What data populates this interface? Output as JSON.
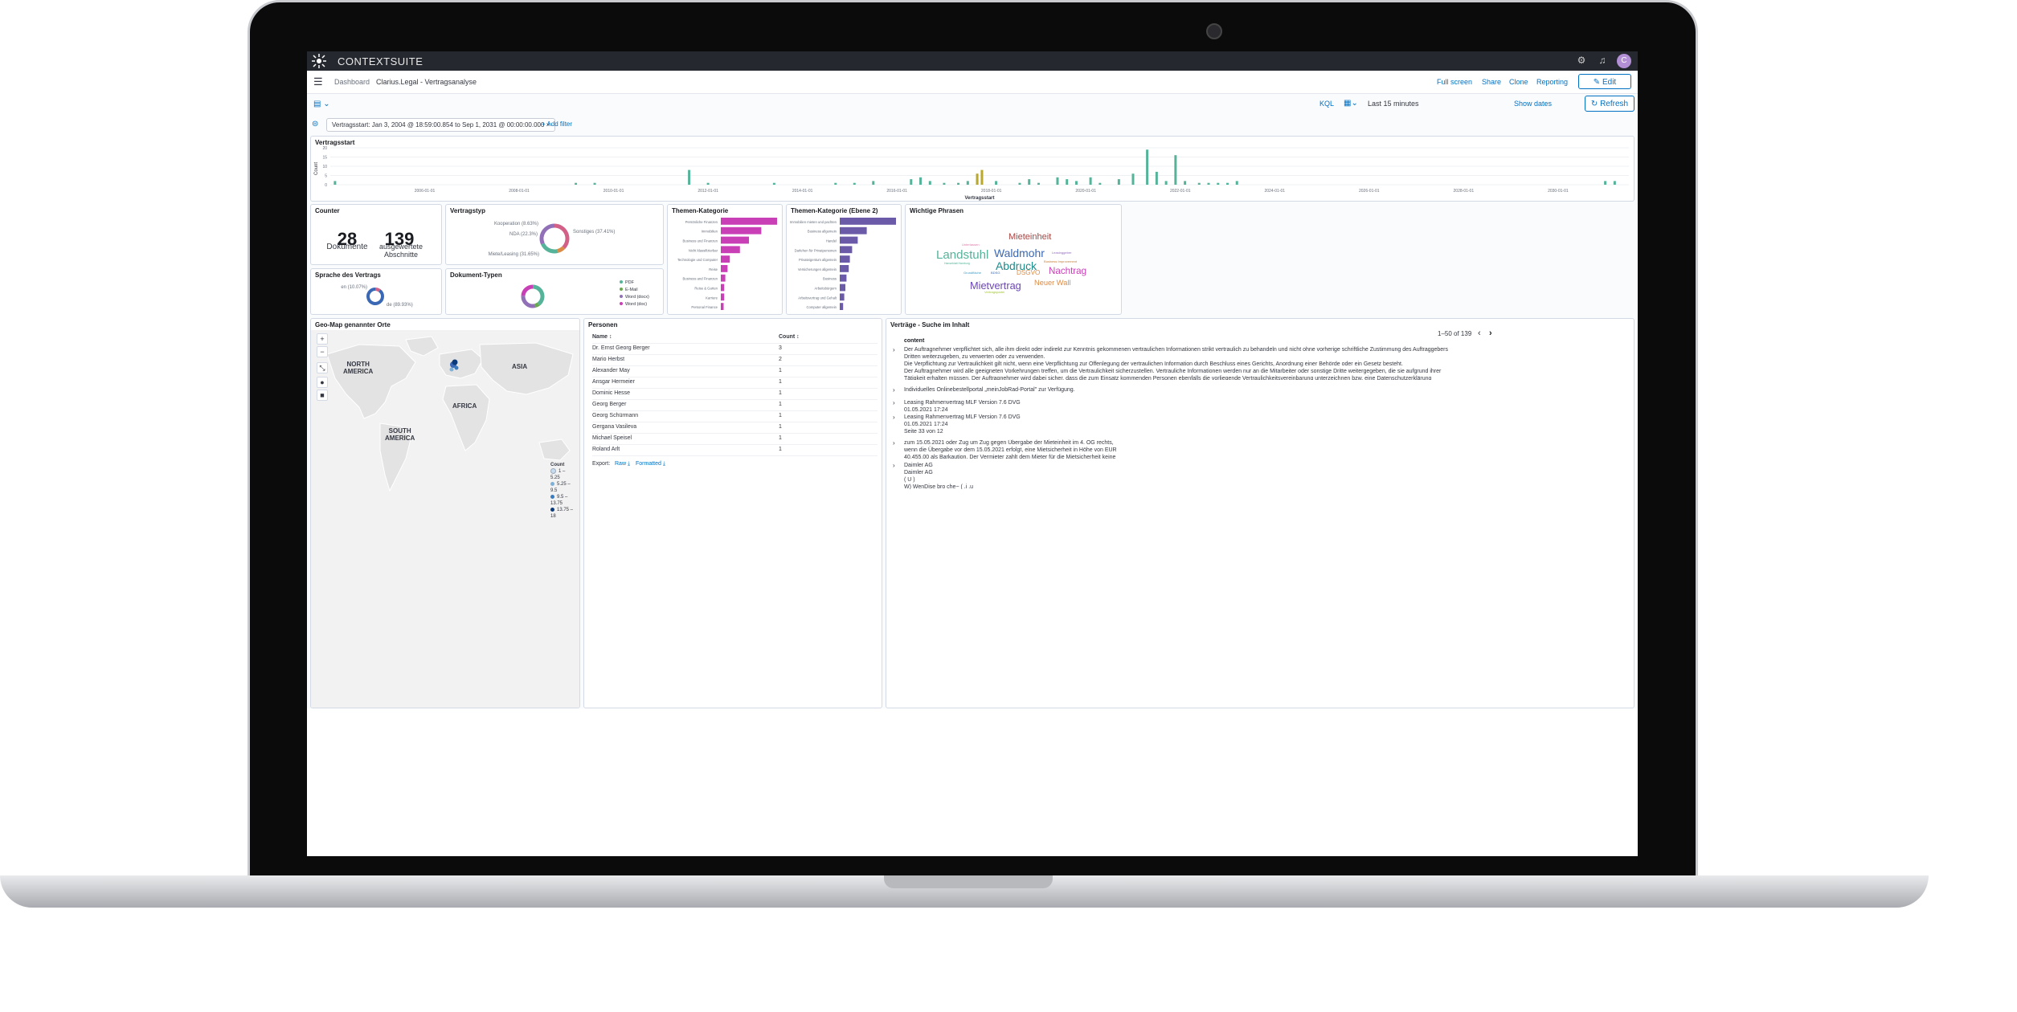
{
  "app": {
    "brand": "CONTEXTSUITE",
    "avatar_letter": "C"
  },
  "nav": {
    "breadcrumb_root": "Dashboard",
    "breadcrumb_current": "Clarius.Legal - Vertragsanalyse",
    "links": [
      "Full screen",
      "Share",
      "Clone",
      "Reporting"
    ],
    "edit_label": "Edit"
  },
  "query": {
    "kql": "KQL",
    "time_range": "Last 15 minutes",
    "show_dates": "Show dates",
    "refresh_label": "Refresh"
  },
  "filters": {
    "pill": "Vertragsstart: Jan 3, 2004 @ 18:59:00.854 to Sep 1, 2031 @ 00:00:00.000",
    "add_filter": "+ Add filter"
  },
  "panels": {
    "vertragsstart": "Vertragsstart",
    "counter": "Counter",
    "vertragstyp": "Vertragstyp",
    "themen": "Themen-Kategorie",
    "themen2": "Themen-Kategorie (Ebene 2)",
    "phrasen": "Wichtige Phrasen",
    "sprache": "Sprache des Vertrags",
    "dokumente": "Dokument-Typen",
    "geomap": "Geo-Map genannter Orte",
    "personen": "Personen",
    "vertraege": "Verträge - Suche im Inhalt"
  },
  "counter": {
    "docs_value": "28",
    "docs_label": "Dokumente",
    "sections_value": "139",
    "sections_label": "ausgewertete Abschnitte"
  },
  "chart_data": [
    {
      "type": "bar",
      "title": "Vertragsstart",
      "xlabel": "Vertragsstart",
      "ylabel": "Count",
      "ylim": [
        0,
        20
      ],
      "yticks": [
        "0",
        "5",
        "10",
        "15",
        "20"
      ],
      "xticks": [
        "2006-01-01",
        "2008-01-01",
        "2010-01-01",
        "2012-01-01",
        "2014-01-01",
        "2016-01-01",
        "2018-01-01",
        "2020-01-01",
        "2022-01-01",
        "2024-01-01",
        "2026-01-01",
        "2028-01-01",
        "2030-01-01"
      ],
      "series": [
        {
          "color": "#54b399",
          "points": [
            [
              2004.1,
              2
            ],
            [
              2009.2,
              1
            ],
            [
              2009.6,
              1
            ],
            [
              2011.6,
              8
            ],
            [
              2012.0,
              1
            ],
            [
              2013.4,
              1
            ],
            [
              2014.7,
              1
            ],
            [
              2015.1,
              1
            ],
            [
              2015.5,
              2
            ],
            [
              2016.3,
              3
            ],
            [
              2016.5,
              4
            ],
            [
              2016.7,
              2
            ],
            [
              2017.0,
              1
            ],
            [
              2017.3,
              1
            ],
            [
              2017.5,
              2
            ],
            [
              2017.7,
              3
            ],
            [
              2018.1,
              2
            ],
            [
              2018.6,
              1
            ],
            [
              2018.8,
              3
            ],
            [
              2019.0,
              1
            ],
            [
              2019.4,
              4
            ],
            [
              2019.6,
              3
            ],
            [
              2019.8,
              2
            ],
            [
              2020.1,
              4
            ],
            [
              2020.3,
              1
            ],
            [
              2020.7,
              3
            ],
            [
              2021.0,
              6
            ],
            [
              2021.3,
              19
            ],
            [
              2021.5,
              7
            ],
            [
              2021.7,
              2
            ],
            [
              2021.9,
              16
            ],
            [
              2022.1,
              2
            ],
            [
              2022.4,
              1
            ],
            [
              2022.6,
              1
            ],
            [
              2022.8,
              1
            ],
            [
              2023.0,
              1
            ],
            [
              2023.2,
              2
            ],
            [
              2031.0,
              2
            ],
            [
              2031.2,
              2
            ]
          ]
        },
        {
          "color": "#b9a82d",
          "points": [
            [
              2017.7,
              6
            ],
            [
              2017.8,
              8
            ]
          ]
        }
      ]
    },
    {
      "type": "pie",
      "title": "Vertragstyp",
      "labels": [
        "Sonstiges (37.41%)",
        "Kooperation (8.63%)",
        "NDA (22.3%)",
        "Miete/Leasing (31.65%)"
      ],
      "values": [
        37.41,
        8.63,
        22.3,
        31.65
      ],
      "colors": [
        "#d36086",
        "#da8b45",
        "#54b399",
        "#9170b8"
      ]
    },
    {
      "type": "bar",
      "title": "Themen-Kategorie",
      "orientation": "horizontal",
      "categories": [
        "Persönliche Finanzen",
        "Immobilien",
        "Business und Finanzen",
        "Nicht klassifizierbar",
        "Technologie und Computer",
        "Reise",
        "Business and Finanzen",
        "Reise & Garten",
        "Karriere",
        "Personal Finance"
      ],
      "values": [
        100,
        72,
        50,
        34,
        16,
        12,
        8,
        6,
        6,
        5
      ],
      "color": "#c940b6"
    },
    {
      "type": "bar",
      "title": "Themen-Kategorie (Ebene 2)",
      "orientation": "horizontal",
      "categories": [
        "Immobilien mieten und pachten",
        "Business allgemein",
        "Handel",
        "Darlehen für Privatpersonen",
        "Privateigentum allgemein",
        "Versicherungen allgemein",
        "Business",
        "Arbeitsbürgern",
        "Arbeitsvertrag und Gehalt",
        "Computer allgemein"
      ],
      "values": [
        100,
        48,
        32,
        22,
        18,
        16,
        12,
        10,
        8,
        6
      ],
      "color": "#6b5aa8"
    },
    {
      "type": "pie",
      "title": "Sprache des Vertrags",
      "labels": [
        "en (10.07%)",
        "de (89.93%)"
      ],
      "values": [
        10.07,
        89.93
      ],
      "colors": [
        "#d36086",
        "#3b68b5"
      ]
    },
    {
      "type": "pie",
      "title": "Dokument-Typen",
      "labels": [
        "PDF",
        "E-Mail",
        "Word (docx)",
        "Word (doc)"
      ],
      "values": [
        40,
        6,
        30,
        24
      ],
      "colors": [
        "#54b399",
        "#6aa84f",
        "#9170b8",
        "#c940b6"
      ]
    }
  ],
  "wordcloud": [
    {
      "text": "Mieteinheit",
      "color": "#a94442",
      "size": 19
    },
    {
      "text": "Unterlassen",
      "color": "#e07aa8",
      "size": 7
    },
    {
      "text": "Landstuhl",
      "color": "#54b399",
      "size": 26
    },
    {
      "text": "Waldmohr",
      "color": "#3b68b5",
      "size": 24
    },
    {
      "text": "Leasinggeber",
      "color": "#9170b8",
      "size": 7
    },
    {
      "text": "Hanseblatt Hamburg",
      "color": "#54b399",
      "size": 6
    },
    {
      "text": "Abdruck",
      "color": "#1f8a8a",
      "size": 24
    },
    {
      "text": "Business Improvement",
      "color": "#c7813c",
      "size": 7
    },
    {
      "text": "Grundfläche",
      "color": "#3b9dc8",
      "size": 7
    },
    {
      "text": "BDSG",
      "color": "#3b68b5",
      "size": 7
    },
    {
      "text": "DSGVO",
      "color": "#da8b45",
      "size": 14
    },
    {
      "text": "Nachtrag",
      "color": "#c940b6",
      "size": 20
    },
    {
      "text": "Mietvertrag",
      "color": "#6b46b6",
      "size": 22
    },
    {
      "text": "Neuer Wall",
      "color": "#da8b45",
      "size": 16
    },
    {
      "text": "Vertragspartei",
      "color": "#a5c73c",
      "size": 7
    }
  ],
  "map": {
    "labels": {
      "na": "NORTH\nAMERICA",
      "asia": "ASIA",
      "africa": "AFRICA",
      "sa": "SOUTH\nAMERICA"
    },
    "legend_title": "Count",
    "legend": [
      {
        "label": "1 – 5.25",
        "color": "#c7dbef"
      },
      {
        "label": "5.25 – 9.5",
        "color": "#7fb0d8"
      },
      {
        "label": "9.5 – 13.75",
        "color": "#3b7cc0"
      },
      {
        "label": "13.75 – 18",
        "color": "#0b3a7a"
      }
    ]
  },
  "personen": {
    "col_name": "Name ↕",
    "col_count": "Count ↕",
    "rows": [
      {
        "name": "Dr. Ernst Georg Berger",
        "count": "3"
      },
      {
        "name": "Mario Herbst",
        "count": "2"
      },
      {
        "name": "Alexander May",
        "count": "1"
      },
      {
        "name": "Ansgar Hermeier",
        "count": "1"
      },
      {
        "name": "Dominic Hesse",
        "count": "1"
      },
      {
        "name": "Georg Berger",
        "count": "1"
      },
      {
        "name": "Georg Schürmann",
        "count": "1"
      },
      {
        "name": "Gergana Vasileva",
        "count": "1"
      },
      {
        "name": "Michael Speisel",
        "count": "1"
      },
      {
        "name": "Roland Arlt",
        "count": "1"
      }
    ],
    "export_label": "Export:",
    "export_raw": "Raw ⤓",
    "export_formatted": "Formatted ⤓"
  },
  "vertraege": {
    "pagination": "1–50 of 139",
    "col_content": "content",
    "items": [
      "Der Auftragnehmer verpflichtet sich, alle ihm direkt oder indirekt zur Kenntnis gekommenen vertraulichen Informationen strikt vertraulich zu behandeln und nicht ohne vorherige schriftliche Zustimmung des Auftraggebers Dritten weiterzugeben, zu verwerten oder zu verwenden.\nDie Verpflichtung zur Vertraulichkeit gilt nicht, wenn eine Verpflichtung zur Offenlegung der vertraulichen Information durch Beschluss eines Gerichts, Anordnung einer Behörde oder ein Gesetz besteht.\nDer Auftragnehmer wird alle geeigneten Vorkehrungen treffen, um die Vertraulichkeit sicherzustellen. Vertrauliche Informationen werden nur an die Mitarbeiter oder sonstige Dritte weitergegeben, die sie aufgrund ihrer Tätigkeit erhalten müssen. Der Auftragnehmer wird dabei sicher, dass die zum Einsatz kommenden Personen ebenfalls die vorliegende Vertraulichkeitsvereinbarung unterzeichnen bzw. eine Datenschutzerklärung unterschrieben haben.\nDie Pflicht zur absoluten Vertraulichkeit dauert auch nach Beendigung der Zusammenarbeit an. Auf Verlangen sind ausgehändigte Unterlagen einschließlich aller davon angefertigten Kopien sowie Arbeitsunterlagen und ...",
      "Individuelles Onlinebestellportal „meinJobRad-Portal\" zur Verfügung.",
      "Leasing Rahmenvertrag MLF Version 7.6 DVG\n01.05.2021 17:24\n10.",
      "Leasing Rahmenvertrag MLF Version 7.6 DVG\n01.05.2021 17:24\nSeite 33 von 12\n10.",
      "zum 15.05.2021 oder Zug um Zug gegen Übergabe der Mieteinheit im 4. OG rechts,\nwenn die Übergabe vor dem 15.05.2021 erfolgt, eine Mietsicherheit in Höhe von EUR\n40.455,00 als Barkaution. Der Vermieter zahlt dem Mieter für die Mietsicherheit keine",
      "Daimler AG\nDaimler AG\n( U )\nW) WenDise bro che~ ( .i .u\nUnterschrift Unterschrift"
    ]
  }
}
